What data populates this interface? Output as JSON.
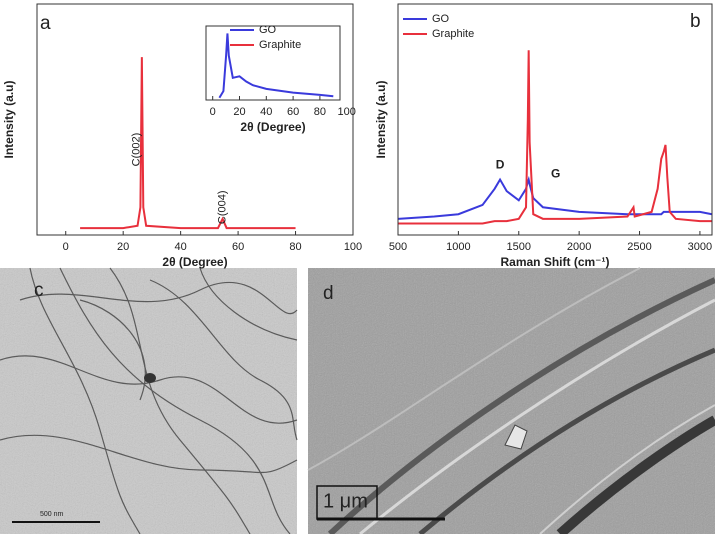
{
  "chart_data": [
    {
      "type": "line",
      "label": "a",
      "xlabel": "2θ (Degree)",
      "ylabel": "Intensity (a.u)",
      "xlim": [
        -10,
        100
      ],
      "xticks": [
        0,
        20,
        40,
        60,
        80,
        100
      ],
      "ylim": [
        0,
        1
      ],
      "x": [
        5,
        20,
        25,
        26,
        26.5,
        27,
        28,
        40,
        53,
        54.6,
        56,
        70,
        80
      ],
      "series": [
        {
          "name": "Graphite",
          "color": "#e8303c",
          "values": [
            0.03,
            0.03,
            0.04,
            0.12,
            0.77,
            0.12,
            0.04,
            0.03,
            0.03,
            0.07,
            0.03,
            0.03,
            0.03
          ]
        }
      ],
      "annotations": [
        "C(002)",
        "C(004)"
      ],
      "inset": {
        "type": "line",
        "xlabel": "2θ (Degree)",
        "xlim": [
          -5,
          95
        ],
        "xticks": [
          0,
          20,
          40,
          60,
          80,
          100
        ],
        "ylim": [
          0,
          1
        ],
        "x": [
          5,
          8,
          10,
          11,
          12,
          15,
          20,
          25,
          30,
          40,
          60,
          80,
          90
        ],
        "series": [
          {
            "name": "GO",
            "color": "#3a3adc",
            "values": [
              0.03,
              0.12,
              0.6,
              0.9,
              0.6,
              0.3,
              0.32,
              0.25,
              0.2,
              0.15,
              0.1,
              0.07,
              0.05
            ]
          }
        ]
      }
    },
    {
      "type": "line",
      "label": "b",
      "xlabel": "Raman Shift (cm⁻¹)",
      "ylabel": "Intensity (a.u)",
      "xlim": [
        500,
        3100
      ],
      "xticks": [
        500,
        1000,
        1500,
        2000,
        2500,
        3000
      ],
      "ylim": [
        0,
        1
      ],
      "x": [
        500,
        800,
        1000,
        1200,
        1300,
        1345,
        1400,
        1500,
        1560,
        1575,
        1582,
        1590,
        1620,
        1700,
        2000,
        2400,
        2450,
        2460,
        2600,
        2650,
        2680,
        2700,
        2715,
        2730,
        2750,
        2800,
        3000,
        3100
      ],
      "series": [
        {
          "name": "GO",
          "color": "#3a3adc",
          "values": [
            0.07,
            0.08,
            0.09,
            0.13,
            0.2,
            0.24,
            0.19,
            0.15,
            0.2,
            0.23,
            0.24,
            0.22,
            0.16,
            0.12,
            0.1,
            0.09,
            0.09,
            0.09,
            0.09,
            0.09,
            0.09,
            0.1,
            0.1,
            0.1,
            0.1,
            0.1,
            0.1,
            0.09
          ]
        },
        {
          "name": "Graphite",
          "color": "#e8303c",
          "values": [
            0.05,
            0.05,
            0.05,
            0.05,
            0.06,
            0.06,
            0.06,
            0.07,
            0.12,
            0.5,
            0.8,
            0.4,
            0.09,
            0.07,
            0.07,
            0.08,
            0.12,
            0.08,
            0.1,
            0.2,
            0.33,
            0.36,
            0.39,
            0.25,
            0.1,
            0.07,
            0.06,
            0.06
          ]
        }
      ],
      "annotations": [
        "D",
        "G"
      ]
    }
  ],
  "images": [
    {
      "label": "c",
      "scale_bar": "500 nm"
    },
    {
      "label": "d",
      "scale_bar": "1 μm"
    }
  ]
}
